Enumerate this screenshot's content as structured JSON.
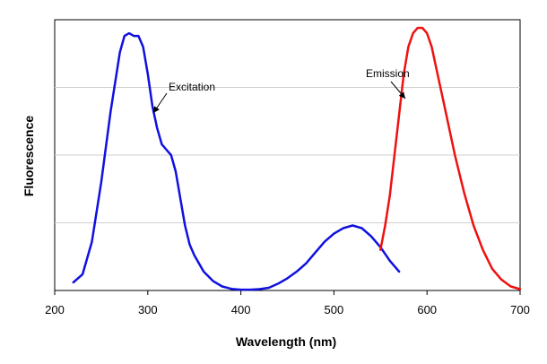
{
  "chart_data": {
    "type": "line",
    "xlabel": "Wavelength (nm)",
    "ylabel": "Fluorescence",
    "xlim": [
      200,
      700
    ],
    "ylim": [
      0,
      1
    ],
    "xticks": [
      200,
      300,
      400,
      500,
      600,
      700
    ],
    "grid": {
      "horizontal": true,
      "vertical": false
    },
    "y_tick_labels_shown": false,
    "series": [
      {
        "name": "Excitation",
        "color": "#1010e0",
        "x": [
          220,
          230,
          240,
          250,
          260,
          270,
          275,
          280,
          285,
          290,
          295,
          300,
          305,
          310,
          315,
          320,
          325,
          330,
          335,
          340,
          345,
          350,
          360,
          370,
          380,
          390,
          400,
          410,
          420,
          430,
          440,
          450,
          460,
          470,
          480,
          490,
          500,
          510,
          520,
          530,
          540,
          550,
          560,
          570
        ],
        "y": [
          0.03,
          0.06,
          0.18,
          0.4,
          0.66,
          0.88,
          0.94,
          0.95,
          0.94,
          0.94,
          0.9,
          0.8,
          0.68,
          0.6,
          0.54,
          0.52,
          0.5,
          0.44,
          0.34,
          0.24,
          0.17,
          0.13,
          0.07,
          0.035,
          0.015,
          0.006,
          0.003,
          0.003,
          0.005,
          0.01,
          0.025,
          0.045,
          0.07,
          0.1,
          0.14,
          0.18,
          0.21,
          0.23,
          0.24,
          0.23,
          0.2,
          0.16,
          0.11,
          0.07
        ]
      },
      {
        "name": "Emission",
        "color": "#ee1111",
        "x": [
          550,
          555,
          560,
          565,
          570,
          575,
          580,
          585,
          590,
          595,
          600,
          605,
          610,
          615,
          620,
          630,
          640,
          650,
          660,
          670,
          680,
          690,
          700
        ],
        "y": [
          0.15,
          0.24,
          0.35,
          0.5,
          0.65,
          0.8,
          0.9,
          0.95,
          0.97,
          0.97,
          0.95,
          0.9,
          0.82,
          0.74,
          0.66,
          0.5,
          0.36,
          0.24,
          0.15,
          0.08,
          0.04,
          0.015,
          0.005
        ]
      }
    ],
    "annotations": [
      {
        "text": "Excitation",
        "series": "Excitation"
      },
      {
        "text": "Emission",
        "series": "Emission"
      }
    ]
  }
}
